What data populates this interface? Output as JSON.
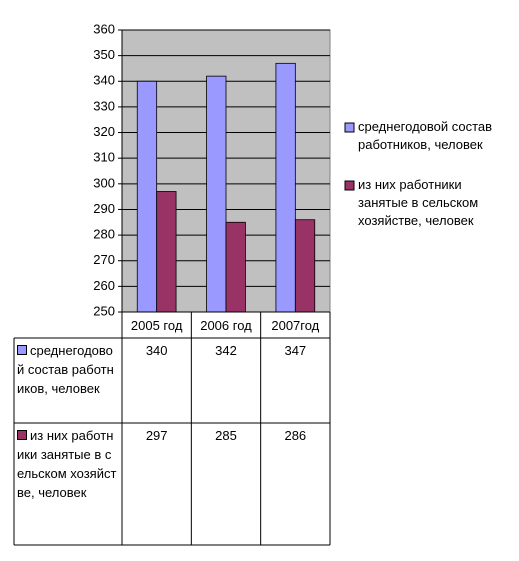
{
  "chart_data": {
    "type": "bar",
    "categories": [
      "2005 год",
      "2006 год",
      "2007год"
    ],
    "series": [
      {
        "name": "среднегодовой состав работников, человек",
        "color": "#9999ff",
        "values": [
          340,
          342,
          347
        ]
      },
      {
        "name": "из них работники занятые в сельском хозяйстве, человек",
        "color": "#993366",
        "values": [
          297,
          285,
          286
        ]
      }
    ],
    "ylim": [
      250,
      360
    ],
    "yticks": [
      250,
      260,
      270,
      280,
      290,
      300,
      310,
      320,
      330,
      340,
      350,
      360
    ],
    "grid": true,
    "legend": "right",
    "data_table": true
  }
}
